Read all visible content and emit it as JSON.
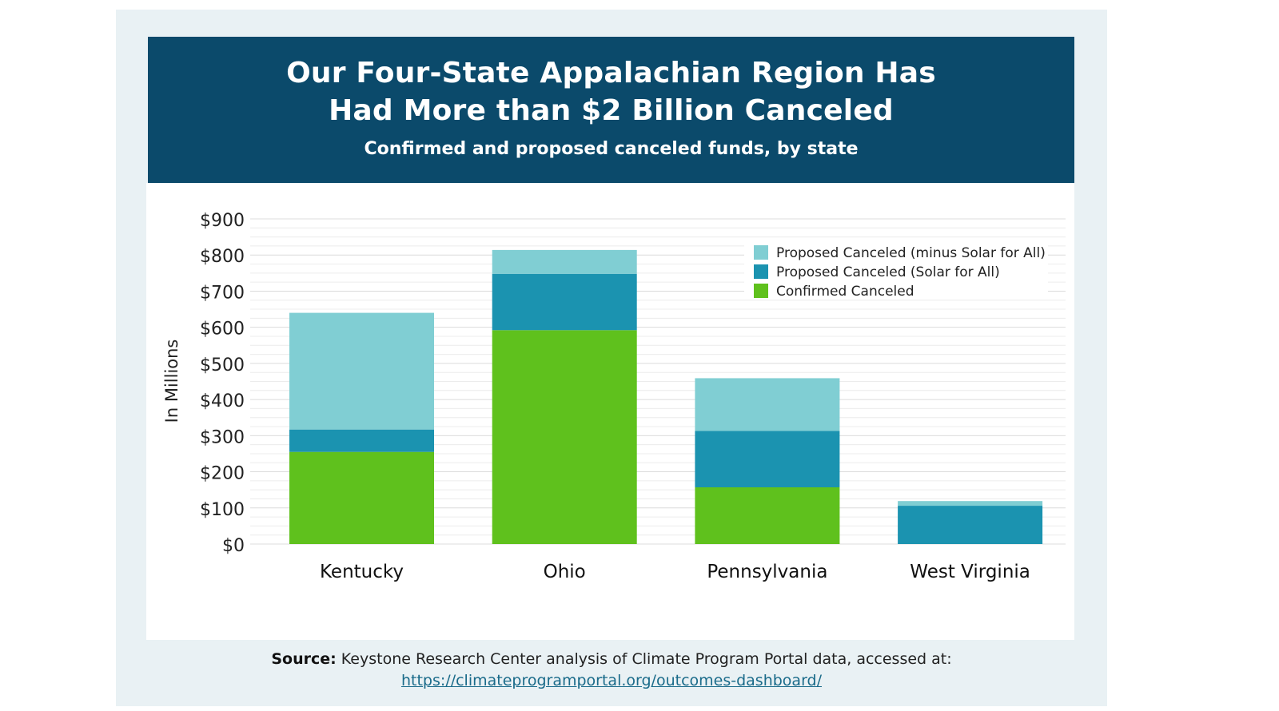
{
  "header": {
    "title_line1": "Our Four-State Appalachian Region Has",
    "title_line2": "Had More than $2 Billion Canceled",
    "subtitle": "Confirmed and proposed canceled funds, by state"
  },
  "source": {
    "label": "Source:",
    "text": "Keystone Research Center analysis of Climate Program Portal data, accessed at:",
    "link": "https://climateprogramportal.org/outcomes-dashboard/"
  },
  "colors": {
    "header_bg": "#0b4a6b",
    "confirmed": "#5fc11d",
    "solar": "#1b93b0",
    "minus_solar": "#80ced3"
  },
  "chart_data": {
    "type": "bar",
    "stacked": true,
    "categories": [
      "Kentucky",
      "Ohio",
      "Pennsylvania",
      "West Virginia"
    ],
    "series": [
      {
        "name": "Confirmed Canceled",
        "color": "#5fc11d",
        "values": [
          255,
          592,
          157,
          0
        ]
      },
      {
        "name": "Proposed Canceled (Solar for All)",
        "color": "#1b93b0",
        "values": [
          62,
          156,
          156,
          106
        ]
      },
      {
        "name": "Proposed Canceled (minus Solar for All)",
        "color": "#80ced3",
        "values": [
          323,
          66,
          146,
          13
        ]
      }
    ],
    "legend_order": [
      "Proposed Canceled (minus Solar for All)",
      "Proposed Canceled (Solar for All)",
      "Confirmed Canceled"
    ],
    "ylabel": "In Millions",
    "ylim": [
      0,
      900
    ],
    "yticks": [
      0,
      100,
      200,
      300,
      400,
      500,
      600,
      700,
      800,
      900
    ],
    "ytick_labels": [
      "$0",
      "$100",
      "$200",
      "$300",
      "$400",
      "$500",
      "$600",
      "$700",
      "$800",
      "$900"
    ],
    "grid": true,
    "legend_position": "top-right"
  }
}
